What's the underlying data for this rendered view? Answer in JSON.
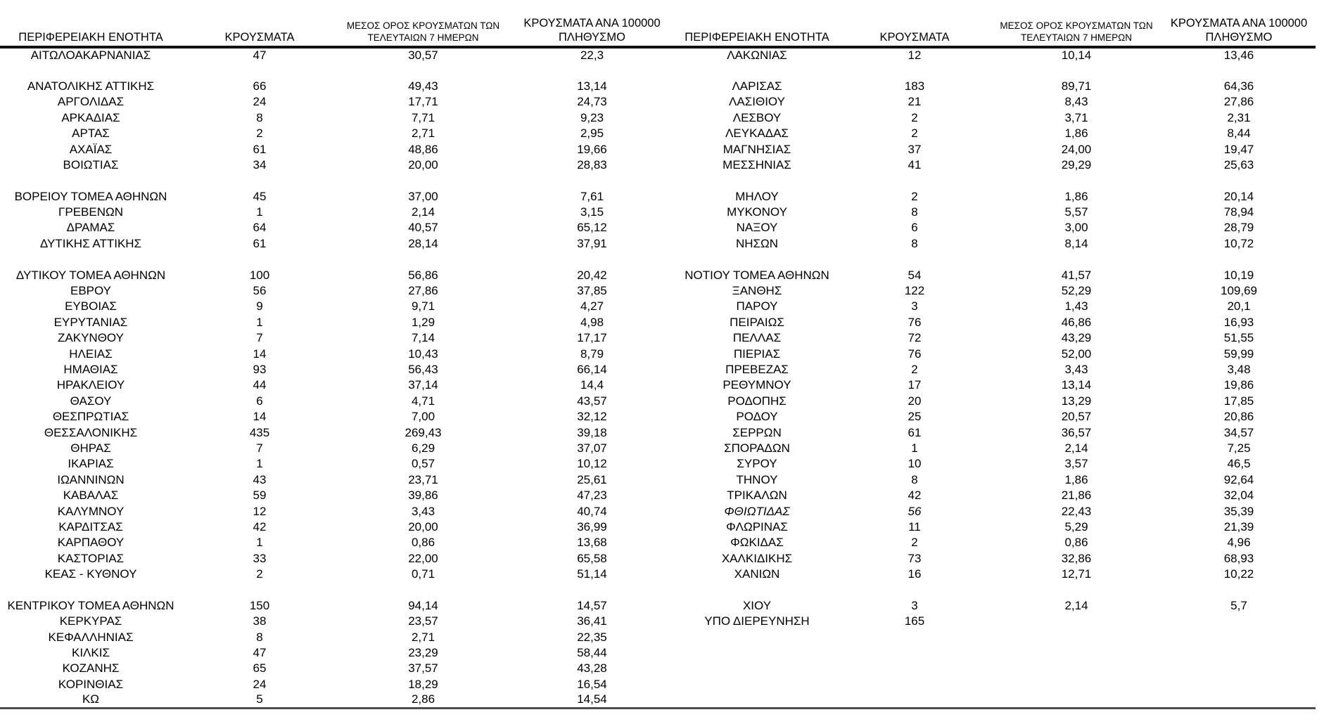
{
  "colors": {
    "background": "#ffffff",
    "text": "#000000",
    "header_rule": "#111111",
    "bottom_rule": "#4d4d4d"
  },
  "headers": {
    "region": "ΠΕΡΙΦΕΡΕΙΑΚΗ ΕΝΟΤΗΤΑ",
    "cases": "ΚΡΟΥΣΜΑΤΑ",
    "avg7": [
      "ΜΕΣΟΣ ΟΡΟΣ ΚΡΟΥΣΜΑΤΩΝ ΤΩΝ",
      "ΤΕΛΕΥΤΑΙΩΝ 7 ΗΜΕΡΩΝ"
    ],
    "per100k": [
      "ΚΡΟΥΣΜΑΤΑ ΑΝΑ 100000",
      "ΠΛΗΘΥΣΜΟ"
    ]
  },
  "rows": [
    {
      "left": {
        "name": "ΑΙΤΩΛΟΑΚΑΡΝΑΝΙΑΣ",
        "cases": "47",
        "avg7": "30,57",
        "per100k": "22,3"
      },
      "right": {
        "name": "ΛΑΚΩΝΙΑΣ",
        "cases": "12",
        "avg7": "10,14",
        "per100k": "13,46"
      }
    },
    {
      "spacer": true
    },
    {
      "left": {
        "name": "ΑΝΑΤΟΛΙΚΗΣ ΑΤΤΙΚΗΣ",
        "cases": "66",
        "avg7": "49,43",
        "per100k": "13,14"
      },
      "right": {
        "name": "ΛΑΡΙΣΑΣ",
        "cases": "183",
        "avg7": "89,71",
        "per100k": "64,36"
      }
    },
    {
      "left": {
        "name": "ΑΡΓΟΛΙΔΑΣ",
        "cases": "24",
        "avg7": "17,71",
        "per100k": "24,73"
      },
      "right": {
        "name": "ΛΑΣΙΘΙΟΥ",
        "cases": "21",
        "avg7": "8,43",
        "per100k": "27,86"
      }
    },
    {
      "left": {
        "name": "ΑΡΚΑΔΙΑΣ",
        "cases": "8",
        "avg7": "7,71",
        "per100k": "9,23"
      },
      "right": {
        "name": "ΛΕΣΒΟΥ",
        "cases": "2",
        "avg7": "3,71",
        "per100k": "2,31"
      }
    },
    {
      "left": {
        "name": "ΑΡΤΑΣ",
        "cases": "2",
        "avg7": "2,71",
        "per100k": "2,95"
      },
      "right": {
        "name": "ΛΕΥΚΑΔΑΣ",
        "cases": "2",
        "avg7": "1,86",
        "per100k": "8,44"
      }
    },
    {
      "left": {
        "name": "ΑΧΑΪΑΣ",
        "cases": "61",
        "avg7": "48,86",
        "per100k": "19,66"
      },
      "right": {
        "name": "ΜΑΓΝΗΣΙΑΣ",
        "cases": "37",
        "avg7": "24,00",
        "per100k": "19,47"
      }
    },
    {
      "left": {
        "name": "ΒΟΙΩΤΙΑΣ",
        "cases": "34",
        "avg7": "20,00",
        "per100k": "28,83"
      },
      "right": {
        "name": "ΜΕΣΣΗΝΙΑΣ",
        "cases": "41",
        "avg7": "29,29",
        "per100k": "25,63"
      }
    },
    {
      "spacer": true
    },
    {
      "left": {
        "name": "ΒΟΡΕΙΟΥ ΤΟΜΕΑ ΑΘΗΝΩΝ",
        "cases": "45",
        "avg7": "37,00",
        "per100k": "7,61"
      },
      "right": {
        "name": "ΜΗΛΟΥ",
        "cases": "2",
        "avg7": "1,86",
        "per100k": "20,14"
      }
    },
    {
      "left": {
        "name": "ΓΡΕΒΕΝΩΝ",
        "cases": "1",
        "avg7": "2,14",
        "per100k": "3,15"
      },
      "right": {
        "name": "ΜΥΚΟΝΟΥ",
        "cases": "8",
        "avg7": "5,57",
        "per100k": "78,94"
      }
    },
    {
      "left": {
        "name": "ΔΡΑΜΑΣ",
        "cases": "64",
        "avg7": "40,57",
        "per100k": "65,12"
      },
      "right": {
        "name": "ΝΑΞΟΥ",
        "cases": "6",
        "avg7": "3,00",
        "per100k": "28,79"
      }
    },
    {
      "left": {
        "name": "ΔΥΤΙΚΗΣ ΑΤΤΙΚΗΣ",
        "cases": "61",
        "avg7": "28,14",
        "per100k": "37,91"
      },
      "right": {
        "name": "ΝΗΣΩΝ",
        "cases": "8",
        "avg7": "8,14",
        "per100k": "10,72"
      }
    },
    {
      "spacer": true
    },
    {
      "left": {
        "name": "ΔΥΤΙΚΟΥ ΤΟΜΕΑ ΑΘΗΝΩΝ",
        "cases": "100",
        "avg7": "56,86",
        "per100k": "20,42"
      },
      "right": {
        "name": "ΝΟΤΙΟΥ ΤΟΜΕΑ ΑΘΗΝΩΝ",
        "cases": "54",
        "avg7": "41,57",
        "per100k": "10,19"
      }
    },
    {
      "left": {
        "name": "ΕΒΡΟΥ",
        "cases": "56",
        "avg7": "27,86",
        "per100k": "37,85"
      },
      "right": {
        "name": "ΞΑΝΘΗΣ",
        "cases": "122",
        "avg7": "52,29",
        "per100k": "109,69"
      }
    },
    {
      "left": {
        "name": "ΕΥΒΟΙΑΣ",
        "cases": "9",
        "avg7": "9,71",
        "per100k": "4,27"
      },
      "right": {
        "name": "ΠΑΡΟΥ",
        "cases": "3",
        "avg7": "1,43",
        "per100k": "20,1"
      }
    },
    {
      "left": {
        "name": "ΕΥΡΥΤΑΝΙΑΣ",
        "cases": "1",
        "avg7": "1,29",
        "per100k": "4,98"
      },
      "right": {
        "name": "ΠΕΙΡΑΙΩΣ",
        "cases": "76",
        "avg7": "46,86",
        "per100k": "16,93"
      }
    },
    {
      "left": {
        "name": "ΖΑΚΥΝΘΟΥ",
        "cases": "7",
        "avg7": "7,14",
        "per100k": "17,17"
      },
      "right": {
        "name": "ΠΕΛΛΑΣ",
        "cases": "72",
        "avg7": "43,29",
        "per100k": "51,55"
      }
    },
    {
      "left": {
        "name": "ΗΛΕΙΑΣ",
        "cases": "14",
        "avg7": "10,43",
        "per100k": "8,79"
      },
      "right": {
        "name": "ΠΙΕΡΙΑΣ",
        "cases": "76",
        "avg7": "52,00",
        "per100k": "59,99"
      }
    },
    {
      "left": {
        "name": "ΗΜΑΘΙΑΣ",
        "cases": "93",
        "avg7": "56,43",
        "per100k": "66,14"
      },
      "right": {
        "name": "ΠΡΕΒΕΖΑΣ",
        "cases": "2",
        "avg7": "3,43",
        "per100k": "3,48"
      }
    },
    {
      "left": {
        "name": "ΗΡΑΚΛΕΙΟΥ",
        "cases": "44",
        "avg7": "37,14",
        "per100k": "14,4"
      },
      "right": {
        "name": "ΡΕΘΥΜΝΟΥ",
        "cases": "17",
        "avg7": "13,14",
        "per100k": "19,86"
      }
    },
    {
      "left": {
        "name": "ΘΑΣΟΥ",
        "cases": "6",
        "avg7": "4,71",
        "per100k": "43,57"
      },
      "right": {
        "name": "ΡΟΔΟΠΗΣ",
        "cases": "20",
        "avg7": "13,29",
        "per100k": "17,85"
      }
    },
    {
      "left": {
        "name": "ΘΕΣΠΡΩΤΙΑΣ",
        "cases": "14",
        "avg7": "7,00",
        "per100k": "32,12"
      },
      "right": {
        "name": "ΡΟΔΟΥ",
        "cases": "25",
        "avg7": "20,57",
        "per100k": "20,86"
      }
    },
    {
      "left": {
        "name": "ΘΕΣΣΑΛΟΝΙΚΗΣ",
        "cases": "435",
        "avg7": "269,43",
        "per100k": "39,18"
      },
      "right": {
        "name": "ΣΕΡΡΩΝ",
        "cases": "61",
        "avg7": "36,57",
        "per100k": "34,57"
      }
    },
    {
      "left": {
        "name": "ΘΗΡΑΣ",
        "cases": "7",
        "avg7": "6,29",
        "per100k": "37,07"
      },
      "right": {
        "name": "ΣΠΟΡΑΔΩΝ",
        "cases": "1",
        "avg7": "2,14",
        "per100k": "7,25"
      }
    },
    {
      "left": {
        "name": "ΙΚΑΡΙΑΣ",
        "cases": "1",
        "avg7": "0,57",
        "per100k": "10,12"
      },
      "right": {
        "name": "ΣΥΡΟΥ",
        "cases": "10",
        "avg7": "3,57",
        "per100k": "46,5"
      }
    },
    {
      "left": {
        "name": "ΙΩΑΝΝΙΝΩΝ",
        "cases": "43",
        "avg7": "23,71",
        "per100k": "25,61"
      },
      "right": {
        "name": "ΤΗΝΟΥ",
        "cases": "8",
        "avg7": "1,86",
        "per100k": "92,64"
      }
    },
    {
      "left": {
        "name": "ΚΑΒΑΛΑΣ",
        "cases": "59",
        "avg7": "39,86",
        "per100k": "47,23"
      },
      "right": {
        "name": "ΤΡΙΚΑΛΩΝ",
        "cases": "42",
        "avg7": "21,86",
        "per100k": "32,04"
      }
    },
    {
      "left": {
        "name": "ΚΑΛΥΜΝΟΥ",
        "cases": "12",
        "avg7": "3,43",
        "per100k": "40,74"
      },
      "right": {
        "name": "ΦΘΙΩΤΙΔΑΣ",
        "cases": "56",
        "avg7": "22,43",
        "per100k": "35,39",
        "italic": true
      }
    },
    {
      "left": {
        "name": "ΚΑΡΔΙΤΣΑΣ",
        "cases": "42",
        "avg7": "20,00",
        "per100k": "36,99"
      },
      "right": {
        "name": "ΦΛΩΡΙΝΑΣ",
        "cases": "11",
        "avg7": "5,29",
        "per100k": "21,39"
      }
    },
    {
      "left": {
        "name": "ΚΑΡΠΑΘΟΥ",
        "cases": "1",
        "avg7": "0,86",
        "per100k": "13,68"
      },
      "right": {
        "name": "ΦΩΚΙΔΑΣ",
        "cases": "2",
        "avg7": "0,86",
        "per100k": "4,96"
      }
    },
    {
      "left": {
        "name": "ΚΑΣΤΟΡΙΑΣ",
        "cases": "33",
        "avg7": "22,00",
        "per100k": "65,58"
      },
      "right": {
        "name": "ΧΑΛΚΙΔΙΚΗΣ",
        "cases": "73",
        "avg7": "32,86",
        "per100k": "68,93"
      }
    },
    {
      "left": {
        "name": "ΚΕΑΣ - ΚΥΘΝΟΥ",
        "cases": "2",
        "avg7": "0,71",
        "per100k": "51,14"
      },
      "right": {
        "name": "ΧΑΝΙΩΝ",
        "cases": "16",
        "avg7": "12,71",
        "per100k": "10,22"
      }
    },
    {
      "spacer": true
    },
    {
      "left": {
        "name": "ΚΕΝΤΡΙΚΟΥ ΤΟΜΕΑ ΑΘΗΝΩΝ",
        "cases": "150",
        "avg7": "94,14",
        "per100k": "14,57"
      },
      "right": {
        "name": "ΧΙΟΥ",
        "cases": "3",
        "avg7": "2,14",
        "per100k": "5,7"
      }
    },
    {
      "left": {
        "name": "ΚΕΡΚΥΡΑΣ",
        "cases": "38",
        "avg7": "23,57",
        "per100k": "36,41"
      },
      "right": {
        "name": "ΥΠΟ ΔΙΕΡΕΥΝΗΣΗ",
        "cases": "165",
        "avg7": "",
        "per100k": ""
      }
    },
    {
      "left": {
        "name": "ΚΕΦΑΛΛΗΝΙΑΣ",
        "cases": "8",
        "avg7": "2,71",
        "per100k": "22,35"
      },
      "right": null
    },
    {
      "left": {
        "name": "ΚΙΛΚΙΣ",
        "cases": "47",
        "avg7": "23,29",
        "per100k": "58,44"
      },
      "right": null
    },
    {
      "left": {
        "name": "ΚΟΖΑΝΗΣ",
        "cases": "65",
        "avg7": "37,57",
        "per100k": "43,28"
      },
      "right": null
    },
    {
      "left": {
        "name": "ΚΟΡΙΝΘΙΑΣ",
        "cases": "24",
        "avg7": "18,29",
        "per100k": "16,54"
      },
      "right": null
    },
    {
      "left": {
        "name": "ΚΩ",
        "cases": "5",
        "avg7": "2,86",
        "per100k": "14,54"
      },
      "right": null
    }
  ]
}
